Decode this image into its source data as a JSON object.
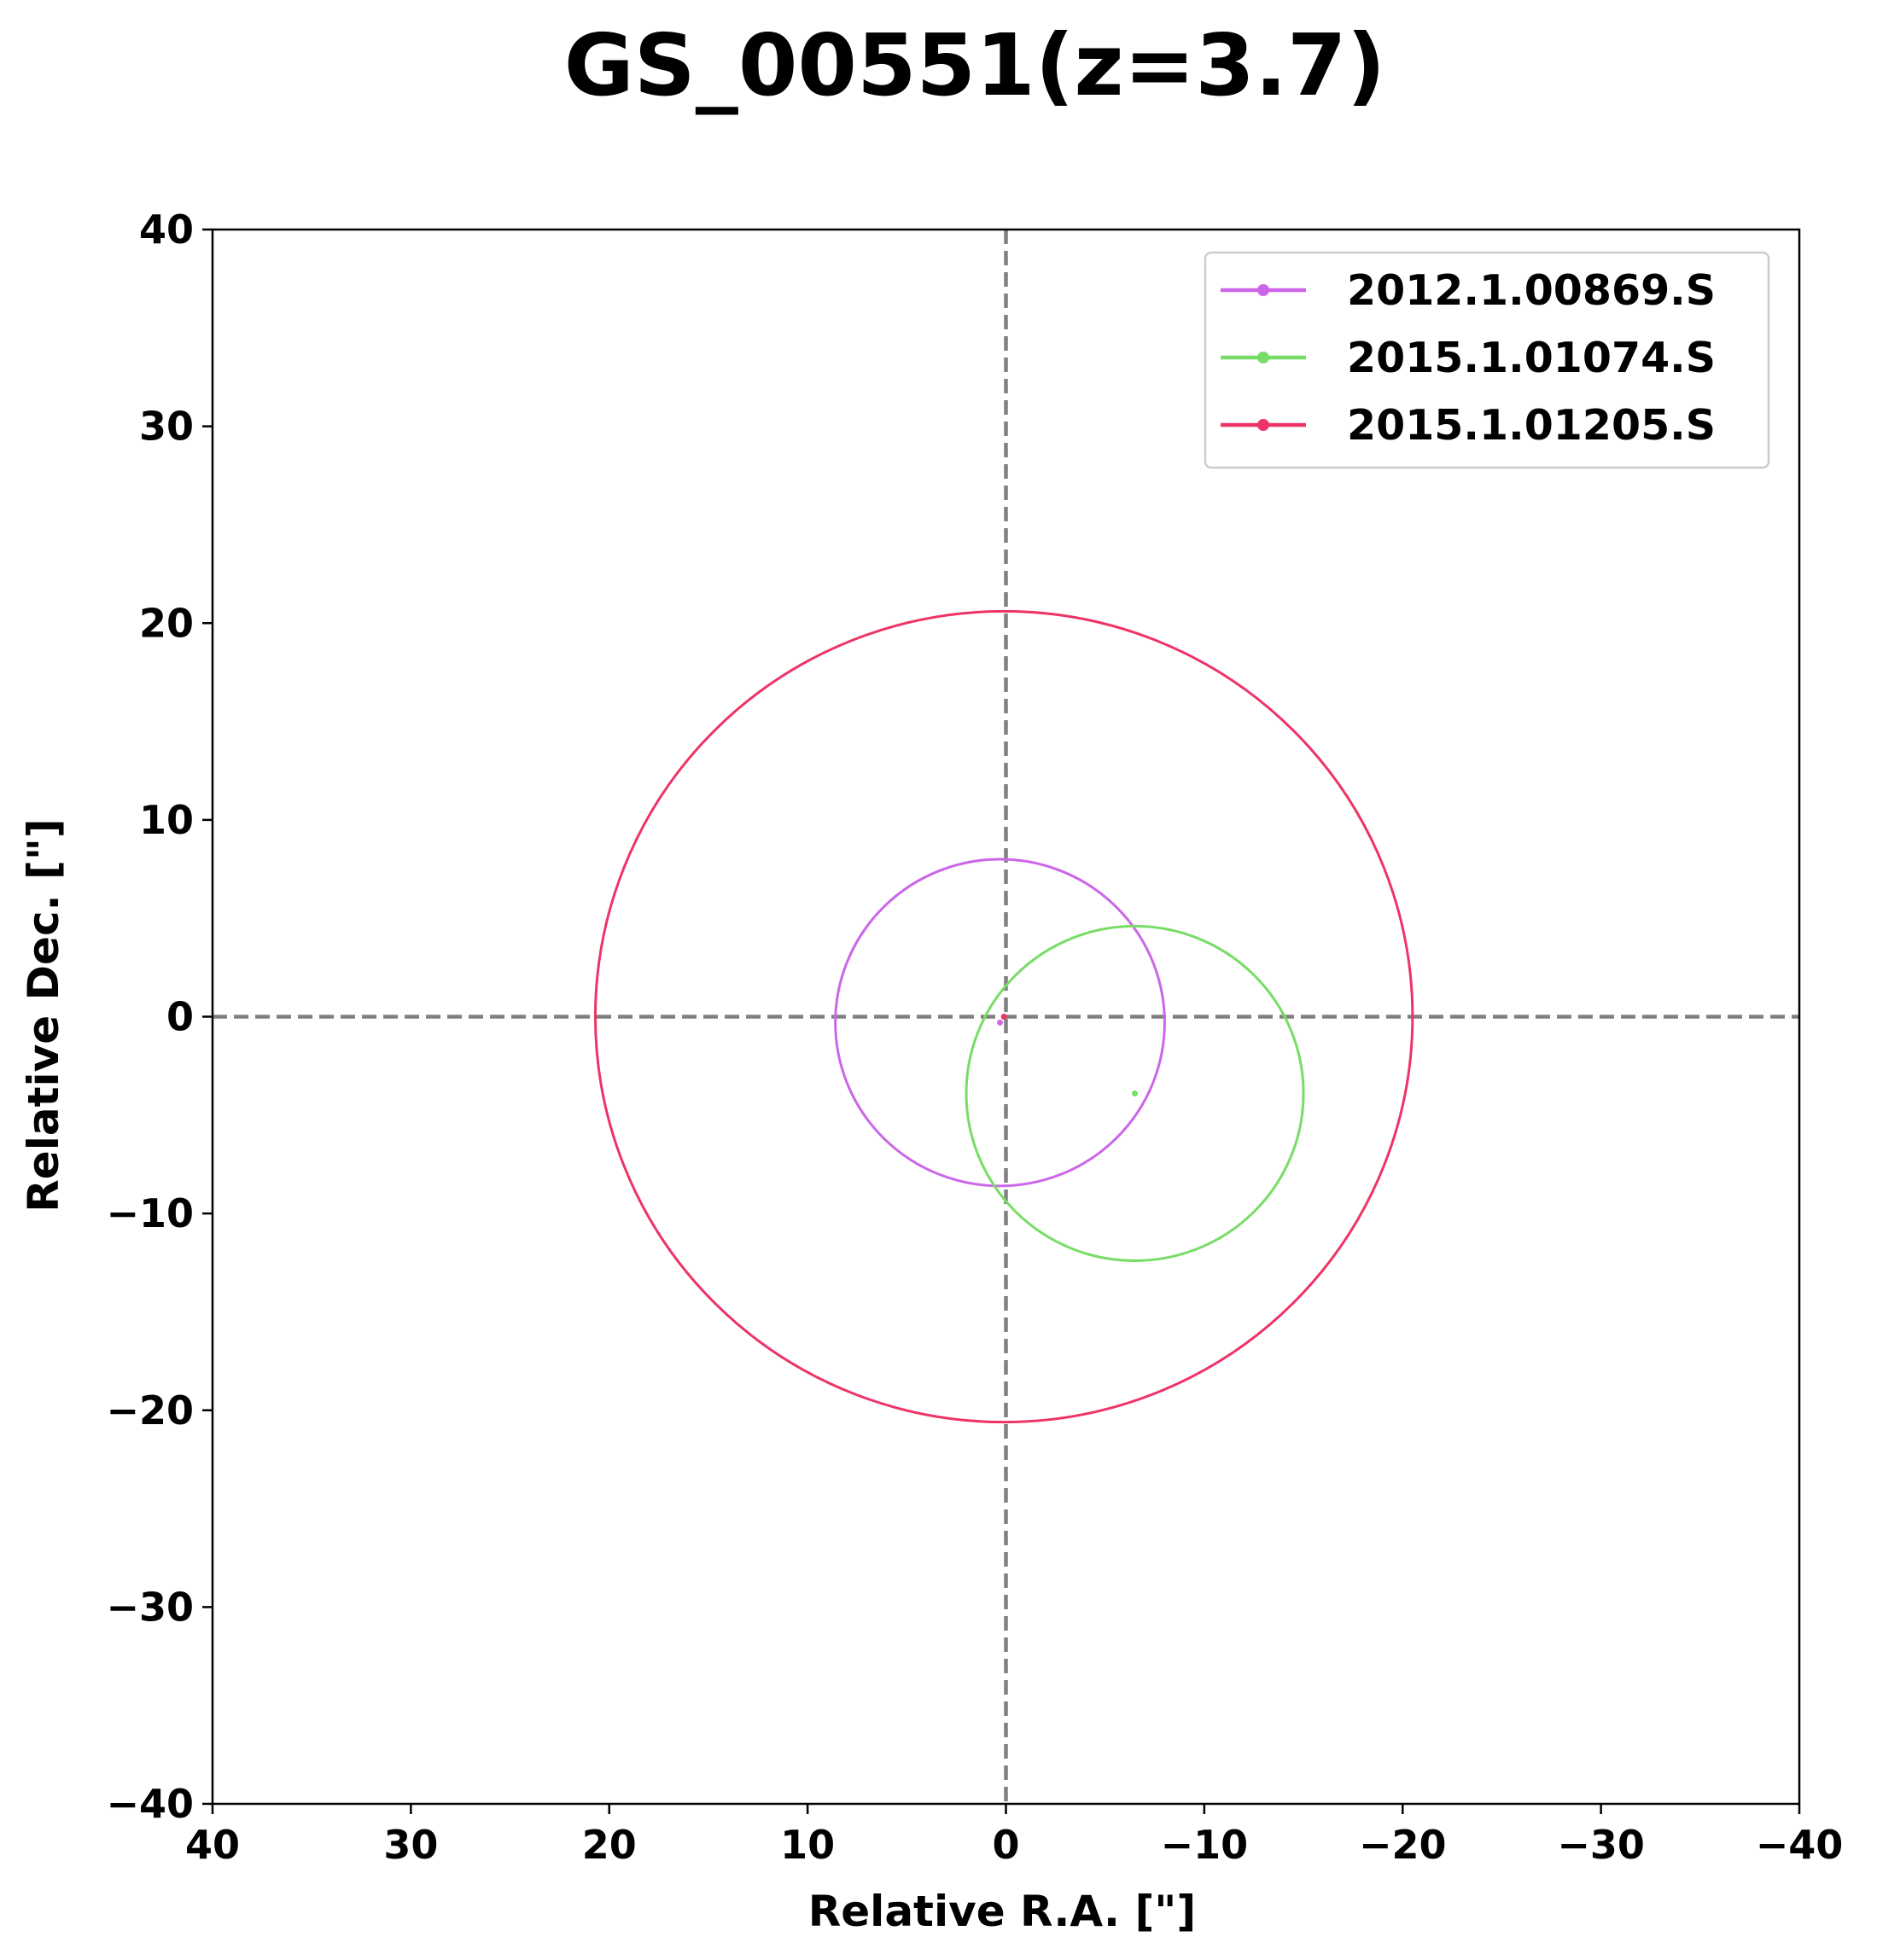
{
  "chart_data": {
    "type": "scatter",
    "title": "GS_00551(z=3.7)",
    "xlabel": "Relative R.A. [\"]",
    "ylabel": "Relative Dec. [\"]",
    "xlim": [
      40,
      -40
    ],
    "ylim": [
      -40,
      40
    ],
    "x_ticks": [
      40,
      30,
      20,
      10,
      0,
      -10,
      -20,
      -30,
      -40
    ],
    "y_ticks": [
      40,
      30,
      20,
      10,
      0,
      -10,
      -20,
      -30,
      -40
    ],
    "x_tick_labels": [
      "40",
      "30",
      "20",
      "10",
      "0",
      "−10",
      "−20",
      "−30",
      "−40"
    ],
    "y_tick_labels": [
      "40",
      "30",
      "20",
      "10",
      "0",
      "−10",
      "−20",
      "−30",
      "−40"
    ],
    "reference_lines": {
      "x": 0,
      "y": 0,
      "style": "dashed",
      "color": "#808080"
    },
    "grid": false,
    "legend_position": "top-right",
    "series": [
      {
        "name": "2012.1.00869.S",
        "color": "#cc66e8",
        "center": [
          0.3,
          -0.3
        ],
        "radius": 8.3
      },
      {
        "name": "2015.1.01074.S",
        "color": "#77dd66",
        "center": [
          -6.5,
          -3.9
        ],
        "radius": 8.5
      },
      {
        "name": "2015.1.01205.S",
        "color": "#ee3366",
        "center": [
          0.1,
          0.0
        ],
        "radius": 20.6
      }
    ]
  }
}
